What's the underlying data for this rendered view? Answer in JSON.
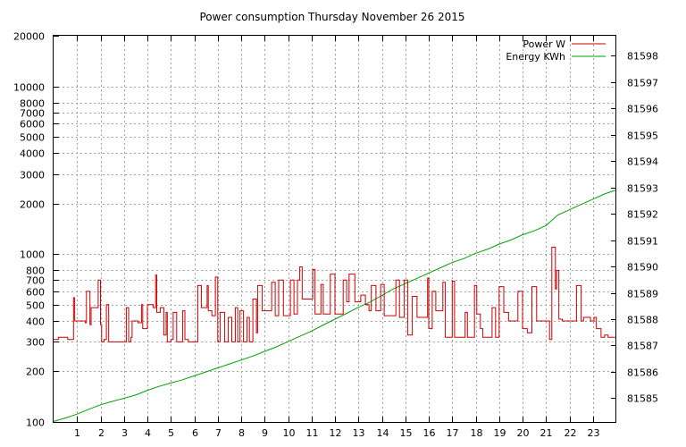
{
  "chart_data": {
    "type": "line",
    "title": "Power consumption Thursday November 26 2015",
    "x_ticks": [
      1,
      2,
      3,
      4,
      5,
      6,
      7,
      8,
      9,
      10,
      11,
      12,
      13,
      14,
      15,
      16,
      17,
      18,
      19,
      20,
      21,
      22,
      23
    ],
    "xlim": [
      0,
      24
    ],
    "y_left": {
      "scale": "log",
      "ylim": [
        100,
        20000
      ],
      "tick_values": [
        100,
        200,
        300,
        400,
        500,
        600,
        700,
        800,
        1000,
        2000,
        3000,
        4000,
        5000,
        6000,
        7000,
        8000,
        10000,
        20000
      ],
      "tick_labels": [
        "100",
        "200",
        "300",
        "400",
        "500",
        "600",
        "700",
        "800",
        "1000",
        "2000",
        "3000",
        "4000",
        "5000",
        "6000",
        "7000",
        "8000",
        "10000",
        "20000"
      ]
    },
    "y_right": {
      "scale": "linear",
      "ylim": [
        81584.1,
        81598.75
      ],
      "tick_values": [
        81585,
        81586,
        81587,
        81588,
        81589,
        81590,
        81591,
        81592,
        81593,
        81594,
        81595,
        81596,
        81597,
        81598
      ],
      "tick_labels": [
        "81585",
        "81586",
        "81587",
        "81588",
        "81589",
        "81590",
        "81591",
        "81592",
        "81593",
        "81594",
        "81595",
        "81596",
        "81597",
        "81598"
      ]
    },
    "grid": true,
    "legend_position": "top-right",
    "series": [
      {
        "name": "Power W",
        "axis": "left",
        "color": "#cc0000",
        "x": [
          0,
          0.2,
          0.6,
          0.85,
          0.9,
          1.2,
          1.35,
          1.4,
          1.55,
          1.6,
          1.8,
          1.9,
          2.0,
          2.05,
          2.15,
          2.25,
          2.35,
          2.4,
          2.8,
          3.1,
          3.2,
          3.3,
          3.35,
          3.6,
          3.75,
          3.8,
          4.0,
          4.1,
          4.25,
          4.35,
          4.4,
          4.55,
          4.7,
          4.8,
          4.85,
          5.0,
          5.1,
          5.25,
          5.35,
          5.5,
          5.6,
          5.75,
          5.8,
          6.1,
          6.15,
          6.3,
          6.45,
          6.55,
          6.6,
          6.75,
          6.9,
          7.0,
          7.1,
          7.3,
          7.45,
          7.6,
          7.75,
          7.85,
          7.95,
          8.1,
          8.25,
          8.35,
          8.5,
          8.65,
          8.7,
          8.9,
          9.05,
          9.3,
          9.45,
          9.6,
          9.8,
          10.0,
          10.1,
          10.25,
          10.4,
          10.5,
          10.6,
          10.75,
          10.8,
          11.05,
          11.15,
          11.4,
          11.5,
          11.65,
          11.8,
          12.0,
          12.15,
          12.35,
          12.5,
          12.6,
          12.85,
          13.0,
          13.1,
          13.3,
          13.45,
          13.55,
          13.75,
          13.95,
          14.1,
          14.3,
          14.45,
          14.6,
          14.75,
          14.95,
          15.1,
          15.3,
          15.5,
          15.65,
          15.8,
          15.95,
          16.0,
          16.15,
          16.3,
          16.45,
          16.6,
          16.7,
          16.85,
          17.0,
          17.1,
          17.3,
          17.55,
          17.65,
          17.8,
          17.95,
          18.05,
          18.2,
          18.3,
          18.55,
          18.7,
          18.85,
          19.0,
          19.2,
          19.4,
          19.6,
          19.8,
          20.0,
          20.2,
          20.4,
          20.6,
          20.85,
          21.0,
          21.1,
          21.15,
          21.25,
          21.3,
          21.4,
          21.45,
          21.55,
          21.7,
          21.85,
          22.0,
          22.1,
          22.3,
          22.5,
          22.6,
          22.75,
          22.9,
          23.05,
          23.15,
          23.35,
          23.5,
          23.65,
          23.75,
          23.9,
          24
        ],
        "y": [
          310,
          320,
          310,
          550,
          400,
          400,
          390,
          600,
          380,
          480,
          480,
          700,
          380,
          300,
          310,
          500,
          300,
          300,
          300,
          480,
          300,
          320,
          400,
          390,
          500,
          360,
          500,
          500,
          480,
          750,
          450,
          480,
          330,
          450,
          300,
          310,
          450,
          300,
          300,
          460,
          310,
          300,
          300,
          300,
          650,
          480,
          480,
          650,
          460,
          430,
          730,
          300,
          450,
          300,
          420,
          300,
          480,
          300,
          460,
          300,
          420,
          300,
          540,
          340,
          650,
          460,
          460,
          680,
          430,
          700,
          430,
          430,
          700,
          440,
          700,
          840,
          540,
          540,
          540,
          810,
          440,
          660,
          440,
          440,
          760,
          440,
          440,
          700,
          520,
          760,
          520,
          520,
          570,
          500,
          460,
          650,
          460,
          660,
          430,
          430,
          430,
          700,
          420,
          700,
          330,
          560,
          420,
          420,
          420,
          720,
          360,
          600,
          460,
          460,
          680,
          320,
          320,
          690,
          320,
          320,
          450,
          320,
          320,
          650,
          440,
          360,
          320,
          320,
          480,
          320,
          640,
          450,
          400,
          400,
          600,
          360,
          340,
          640,
          400,
          400,
          400,
          400,
          310,
          1100,
          1100,
          620,
          800,
          410,
          400,
          400,
          400,
          400,
          650,
          400,
          420,
          420,
          400,
          420,
          360,
          320,
          330,
          320,
          320,
          320,
          320
        ]
      },
      {
        "name": "Energy KWh",
        "axis": "right",
        "color": "#00a000",
        "x": [
          0,
          0.5,
          1,
          1.5,
          2,
          2.5,
          3,
          3.5,
          4,
          4.5,
          5,
          5.5,
          6,
          6.5,
          7,
          7.5,
          8,
          8.5,
          9,
          9.5,
          10,
          10.5,
          11,
          11.5,
          12,
          12.5,
          13,
          13.5,
          14,
          14.5,
          15,
          15.5,
          16,
          16.5,
          17,
          17.5,
          18,
          18.5,
          19,
          19.5,
          20,
          20.5,
          21,
          21.5,
          22,
          22.5,
          23,
          23.5,
          24
        ],
        "y": [
          81584.12,
          81584.25,
          81584.4,
          81584.58,
          81584.75,
          81584.88,
          81585.0,
          81585.12,
          81585.3,
          81585.45,
          81585.58,
          81585.7,
          81585.85,
          81586.0,
          81586.15,
          81586.3,
          81586.45,
          81586.6,
          81586.78,
          81586.95,
          81587.15,
          81587.35,
          81587.55,
          81587.78,
          81588.0,
          81588.22,
          81588.45,
          81588.65,
          81588.9,
          81589.15,
          81589.35,
          81589.55,
          81589.75,
          81589.95,
          81590.15,
          81590.3,
          81590.5,
          81590.65,
          81590.85,
          81591.0,
          81591.2,
          81591.35,
          81591.55,
          81591.95,
          81592.15,
          81592.35,
          81592.55,
          81592.75,
          81592.9
        ]
      }
    ]
  }
}
